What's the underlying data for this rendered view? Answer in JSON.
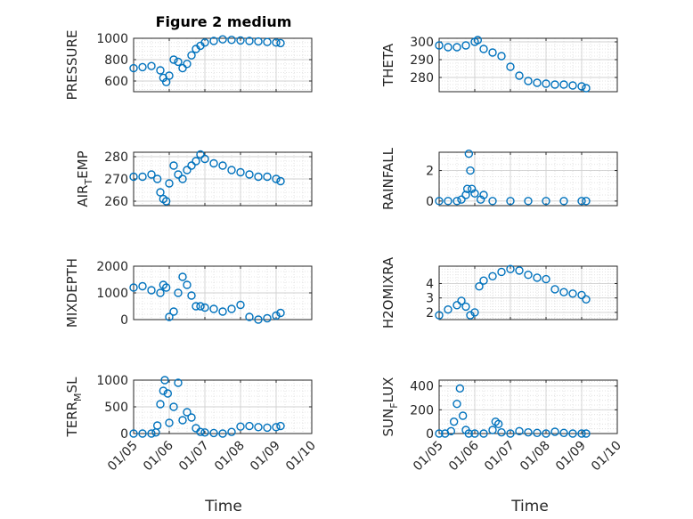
{
  "title": "Figure 2 medium",
  "xlabel": "Time",
  "x_ticks": [
    "01/05",
    "01/06",
    "01/07",
    "01/08",
    "01/09",
    "01/10"
  ],
  "marker_color": "#0072BD",
  "grid": "major-and-minor",
  "chart_data": [
    {
      "type": "scatter",
      "ylabel": "PRESSURE",
      "ylim": [
        500,
        1000
      ],
      "yticks": [
        600,
        800,
        1000
      ],
      "x": [
        "01/05",
        "01/05 06:00",
        "01/05 12:00",
        "01/05 18:00",
        "01/05 20:00",
        "01/05 22:00",
        "01/06",
        "01/06 03:00",
        "01/06 06:00",
        "01/06 09:00",
        "01/06 12:00",
        "01/06 15:00",
        "01/06 18:00",
        "01/06 21:00",
        "01/07",
        "01/07 06:00",
        "01/07 12:00",
        "01/07 18:00",
        "01/08",
        "01/08 06:00",
        "01/08 12:00",
        "01/08 18:00",
        "01/09",
        "01/09 03:00"
      ],
      "y": [
        720,
        730,
        740,
        700,
        630,
        590,
        650,
        800,
        780,
        720,
        760,
        840,
        900,
        930,
        960,
        975,
        990,
        985,
        980,
        975,
        970,
        965,
        960,
        955
      ]
    },
    {
      "type": "scatter",
      "ylabel": "THETA",
      "ylim": [
        272,
        302
      ],
      "yticks": [
        280,
        290,
        300
      ],
      "x": [
        "01/05",
        "01/05 06:00",
        "01/05 12:00",
        "01/05 18:00",
        "01/06",
        "01/06 02:00",
        "01/06 06:00",
        "01/06 12:00",
        "01/06 18:00",
        "01/07",
        "01/07 06:00",
        "01/07 12:00",
        "01/07 18:00",
        "01/08",
        "01/08 06:00",
        "01/08 12:00",
        "01/08 18:00",
        "01/09",
        "01/09 03:00"
      ],
      "y": [
        298,
        297,
        297,
        298,
        300,
        301,
        296,
        294,
        292,
        286,
        281,
        278,
        277,
        276.5,
        276,
        276,
        275.5,
        275,
        274
      ]
    },
    {
      "type": "scatter",
      "ylabel": "AIR_TEMP",
      "ylim": [
        258,
        282
      ],
      "yticks": [
        260,
        270,
        280
      ],
      "x": [
        "01/05",
        "01/05 06:00",
        "01/05 12:00",
        "01/05 16:00",
        "01/05 18:00",
        "01/05 20:00",
        "01/05 22:00",
        "01/06",
        "01/06 03:00",
        "01/06 06:00",
        "01/06 09:00",
        "01/06 12:00",
        "01/06 15:00",
        "01/06 18:00",
        "01/06 21:00",
        "01/07",
        "01/07 06:00",
        "01/07 12:00",
        "01/07 18:00",
        "01/08",
        "01/08 06:00",
        "01/08 12:00",
        "01/08 18:00",
        "01/09",
        "01/09 03:00"
      ],
      "y": [
        271,
        271,
        272,
        270,
        264,
        261,
        260,
        268,
        276,
        272,
        270,
        274,
        276,
        278,
        281,
        279,
        277,
        276,
        274,
        273,
        272,
        271,
        271,
        270,
        269
      ]
    },
    {
      "type": "scatter",
      "ylabel": "RAINFALL",
      "ylim": [
        -0.3,
        3.2
      ],
      "yticks": [
        0,
        2
      ],
      "x": [
        "01/05",
        "01/05 06:00",
        "01/05 12:00",
        "01/05 15:00",
        "01/05 18:00",
        "01/05 19:00",
        "01/05 20:00",
        "01/05 21:00",
        "01/05 22:00",
        "01/06",
        "01/06 04:00",
        "01/06 06:00",
        "01/06 12:00",
        "01/07",
        "01/07 12:00",
        "01/08",
        "01/08 12:00",
        "01/09",
        "01/09 03:00"
      ],
      "y": [
        0,
        0,
        0,
        0.1,
        0.4,
        0.8,
        3.1,
        2.0,
        0.8,
        0.5,
        0.1,
        0.4,
        0,
        0,
        0,
        0,
        0,
        0,
        0
      ]
    },
    {
      "type": "scatter",
      "ylabel": "MIXDEPTH",
      "ylim": [
        0,
        2000
      ],
      "yticks": [
        0,
        1000,
        2000
      ],
      "x": [
        "01/05",
        "01/05 06:00",
        "01/05 12:00",
        "01/05 18:00",
        "01/05 20:00",
        "01/05 22:00",
        "01/06",
        "01/06 03:00",
        "01/06 06:00",
        "01/06 09:00",
        "01/06 12:00",
        "01/06 15:00",
        "01/06 18:00",
        "01/06 21:00",
        "01/07",
        "01/07 06:00",
        "01/07 12:00",
        "01/07 18:00",
        "01/08",
        "01/08 06:00",
        "01/08 12:00",
        "01/08 18:00",
        "01/09",
        "01/09 03:00"
      ],
      "y": [
        1200,
        1250,
        1100,
        1000,
        1300,
        1200,
        100,
        300,
        1000,
        1600,
        1300,
        900,
        500,
        500,
        450,
        400,
        300,
        400,
        550,
        100,
        0,
        50,
        150,
        250
      ]
    },
    {
      "type": "scatter",
      "ylabel": "H2OMIXRA",
      "ylim": [
        1.5,
        5.2
      ],
      "yticks": [
        2,
        3,
        4
      ],
      "x": [
        "01/05",
        "01/05 06:00",
        "01/05 12:00",
        "01/05 15:00",
        "01/05 18:00",
        "01/05 21:00",
        "01/06",
        "01/06 03:00",
        "01/06 06:00",
        "01/06 12:00",
        "01/06 18:00",
        "01/07",
        "01/07 06:00",
        "01/07 12:00",
        "01/07 18:00",
        "01/08",
        "01/08 06:00",
        "01/08 12:00",
        "01/08 18:00",
        "01/09",
        "01/09 03:00"
      ],
      "y": [
        1.8,
        2.2,
        2.5,
        2.8,
        2.4,
        1.8,
        2.0,
        3.8,
        4.2,
        4.5,
        4.8,
        5.0,
        4.9,
        4.6,
        4.4,
        4.3,
        3.6,
        3.4,
        3.3,
        3.2,
        2.9
      ]
    },
    {
      "type": "scatter",
      "ylabel": "TERR_MSL",
      "ylim": [
        0,
        1000
      ],
      "yticks": [
        0,
        500,
        1000
      ],
      "x": [
        "01/05",
        "01/05 06:00",
        "01/05 12:00",
        "01/05 15:00",
        "01/05 16:00",
        "01/05 18:00",
        "01/05 20:00",
        "01/05 21:00",
        "01/05 23:00",
        "01/06",
        "01/06 03:00",
        "01/06 06:00",
        "01/06 09:00",
        "01/06 12:00",
        "01/06 15:00",
        "01/06 18:00",
        "01/06 21:00",
        "01/07",
        "01/07 06:00",
        "01/07 12:00",
        "01/07 18:00",
        "01/08",
        "01/08 06:00",
        "01/08 12:00",
        "01/08 18:00",
        "01/09",
        "01/09 03:00"
      ],
      "y": [
        0,
        0,
        0,
        20,
        150,
        550,
        800,
        1000,
        750,
        200,
        500,
        950,
        250,
        400,
        300,
        100,
        30,
        20,
        10,
        0,
        30,
        130,
        140,
        120,
        110,
        120,
        140
      ]
    },
    {
      "type": "scatter",
      "ylabel": "SUN_FLUX",
      "ylim": [
        0,
        450
      ],
      "yticks": [
        0,
        200,
        400
      ],
      "x": [
        "01/05",
        "01/05 04:00",
        "01/05 08:00",
        "01/05 10:00",
        "01/05 12:00",
        "01/05 14:00",
        "01/05 16:00",
        "01/05 18:00",
        "01/05 20:00",
        "01/06",
        "01/06 06:00",
        "01/06 12:00",
        "01/06 14:00",
        "01/06 16:00",
        "01/06 18:00",
        "01/07",
        "01/07 06:00",
        "01/07 12:00",
        "01/07 18:00",
        "01/08",
        "01/08 06:00",
        "01/08 12:00",
        "01/08 18:00",
        "01/09",
        "01/09 03:00"
      ],
      "y": [
        0,
        0,
        20,
        100,
        250,
        380,
        150,
        30,
        0,
        0,
        0,
        30,
        100,
        80,
        10,
        0,
        20,
        10,
        5,
        0,
        15,
        5,
        0,
        0,
        0
      ]
    }
  ]
}
